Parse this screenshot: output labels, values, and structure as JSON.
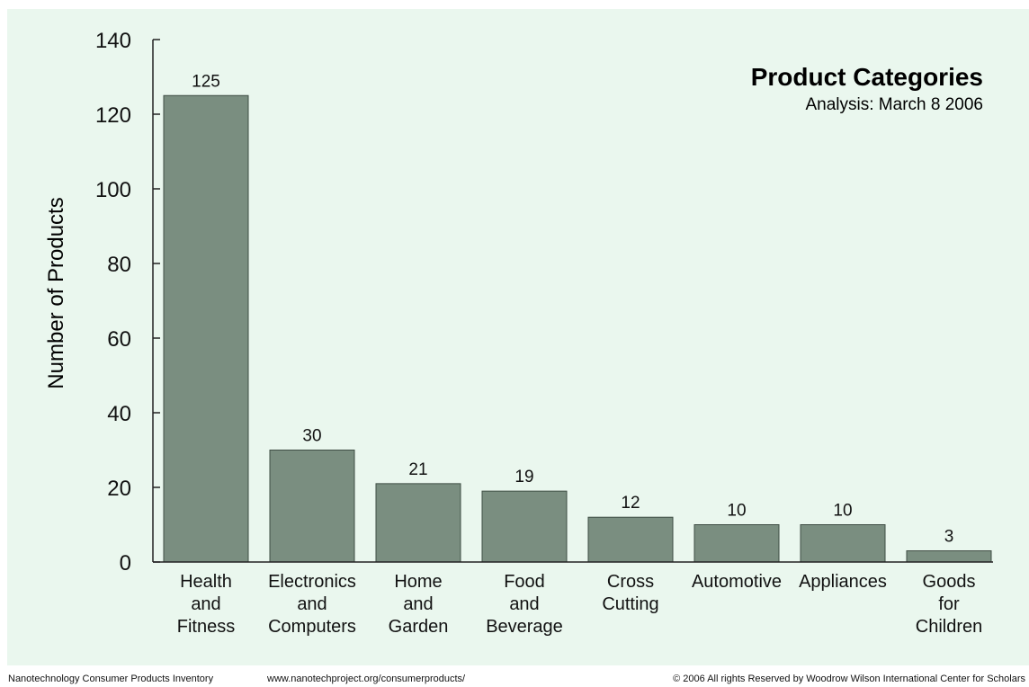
{
  "colors": {
    "background": "#eaf7ee",
    "bar": "#7a8e80",
    "bar_outline": "#3f4d44",
    "axis": "#222222",
    "text": "#111111"
  },
  "chart_data": {
    "type": "bar",
    "title": "Product Categories",
    "subtitle": "Analysis: March 8 2006",
    "ylabel": "Number of Products",
    "xlabel": "",
    "ylim": [
      0,
      140
    ],
    "yticks": [
      0,
      20,
      40,
      60,
      80,
      100,
      120,
      140
    ],
    "grid": false,
    "categories": [
      [
        "Health",
        "and",
        "Fitness"
      ],
      [
        "Electronics",
        "and",
        "Computers"
      ],
      [
        "Home",
        "and",
        "Garden"
      ],
      [
        "Food",
        "and",
        "Beverage"
      ],
      [
        "Cross",
        "Cutting"
      ],
      [
        "Automotive"
      ],
      [
        "Appliances"
      ],
      [
        "Goods",
        "for",
        "Children"
      ]
    ],
    "values": [
      125,
      30,
      21,
      19,
      12,
      10,
      10,
      3
    ]
  },
  "footer": {
    "left": "Nanotechnology Consumer Products Inventory",
    "middle": "www.nanotechproject.org/consumerproducts/",
    "right": "© 2006 All rights Reserved by Woodrow Wilson International Center for Scholars"
  }
}
